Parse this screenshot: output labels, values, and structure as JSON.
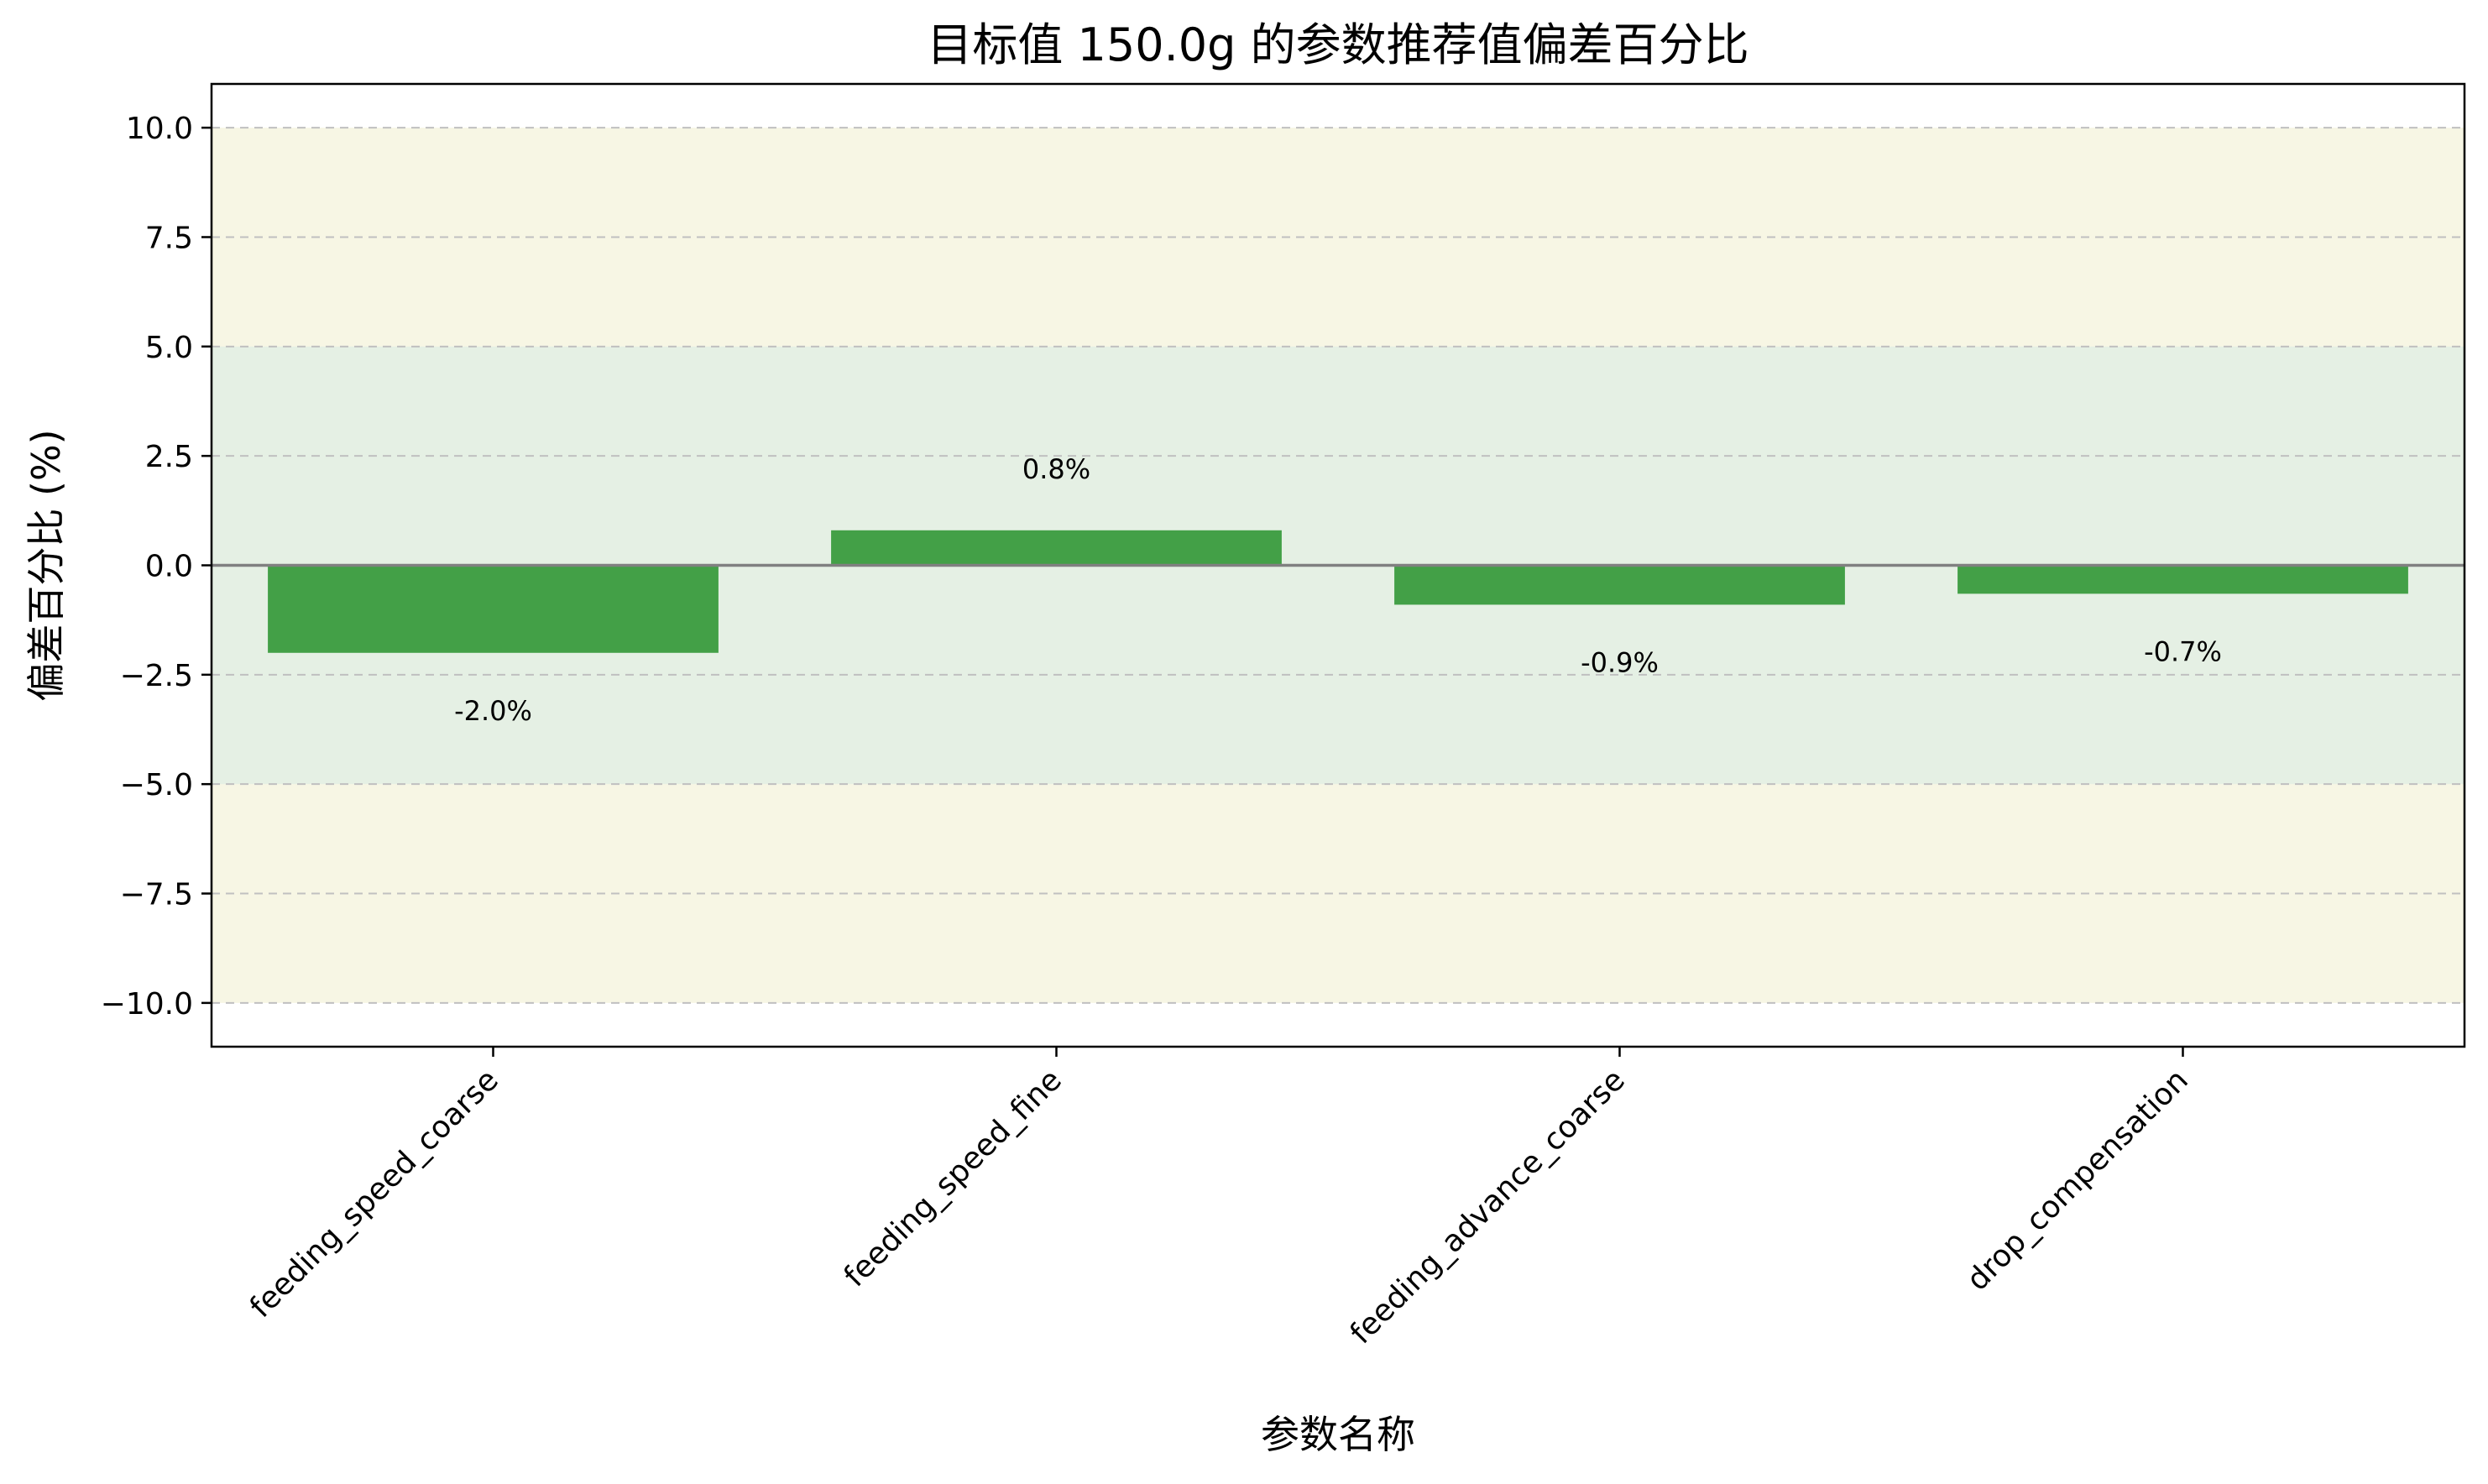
{
  "chart_data": {
    "type": "bar",
    "title": "目标值 150.0g 的参数推荐值偏差百分比",
    "xlabel": "参数名称",
    "ylabel": "偏差百分比 (%)",
    "categories": [
      "feeding_speed_coarse",
      "feeding_speed_fine",
      "feeding_advance_coarse",
      "drop_compensation"
    ],
    "values": [
      -2.0,
      0.8,
      -0.9,
      -0.65
    ],
    "value_labels": [
      "-2.0%",
      "0.8%",
      "-0.9%",
      "-0.7%"
    ],
    "ylim": [
      -11,
      11
    ],
    "yticks": [
      -10.0,
      -7.5,
      -5.0,
      -2.5,
      0.0,
      2.5,
      5.0,
      7.5,
      10.0
    ],
    "ytick_labels": [
      "−10.0",
      "−7.5",
      "−5.0",
      "−2.5",
      "0.0",
      "2.5",
      "5.0",
      "7.5",
      "10.0"
    ],
    "bands": [
      {
        "from": -10,
        "to": 10,
        "color": "#f7f6e4"
      },
      {
        "from": -5,
        "to": 5,
        "color": "#e5f0e4"
      }
    ],
    "grid": "y-dashed",
    "colors": {
      "bar": "#43a047",
      "zero_line": "#808080",
      "grid": "#c0c0c0",
      "axis": "#000000"
    }
  }
}
